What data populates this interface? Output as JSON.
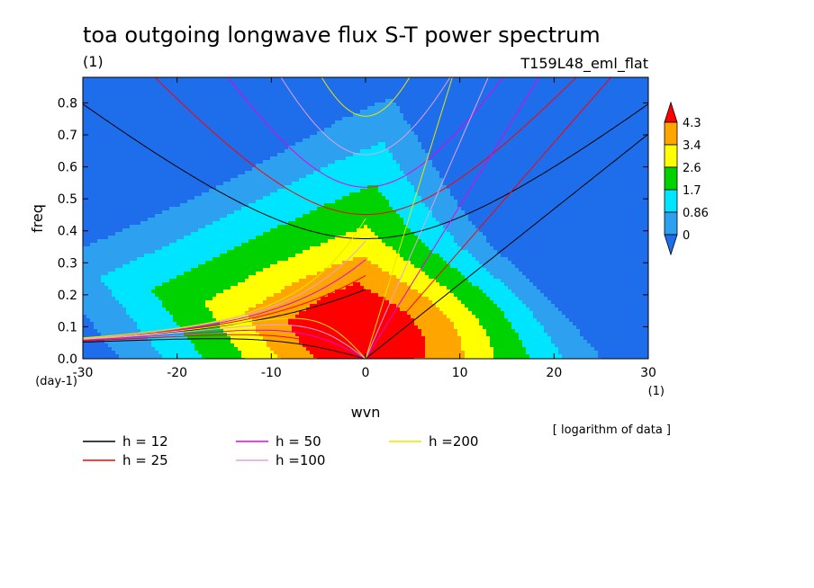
{
  "chart_data": {
    "type": "heatmap",
    "title": "toa outgoing longwave flux S-T power spectrum",
    "subtitle_left": "(1)",
    "subtitle_right": "T159L48_eml_flat",
    "xlabel": "wvn",
    "ylabel": "freq",
    "x_unit": "(1)",
    "y_unit": "(day-1)",
    "note": "[ logarithm of data ]",
    "xlim": [
      -30,
      30
    ],
    "ylim": [
      0,
      0.88
    ],
    "x_ticks": [
      "-30",
      "-20",
      "-10",
      "0",
      "10",
      "20",
      "30"
    ],
    "y_ticks": [
      "0.0",
      "0.1",
      "0.2",
      "0.3",
      "0.4",
      "0.5",
      "0.6",
      "0.7",
      "0.8"
    ],
    "contour_levels": [
      0,
      0.86,
      1.7,
      2.6,
      3.4,
      4.3
    ],
    "colorbar_labels": [
      "0",
      "0.86",
      "1.7",
      "2.6",
      "3.4",
      "4.3"
    ],
    "colors": [
      "#1E6EEB",
      "#2EA0F0",
      "#00E5FF",
      "#00D200",
      "#FFFF00",
      "#FFA500",
      "#FF0000"
    ],
    "field_model": {
      "peak_x": -2,
      "peak_y": 0.07,
      "peak_value": 4.75,
      "decay_along": 0.23,
      "decay_across": 0.075,
      "tilt_dx": -0.9,
      "tilt_dy": 0.19,
      "east_lobe": {
        "x": 5,
        "y": 0.11,
        "amp": 1.2,
        "sx": 10,
        "sy": 0.13
      },
      "bg_lobes": [
        {
          "x": -30,
          "y": 0.85,
          "amp": -1.5,
          "sx": 11,
          "sy": 0.2
        },
        {
          "x": 22,
          "y": 0.6,
          "amp": -1.2,
          "sx": 10,
          "sy": 0.35
        },
        {
          "x": 32,
          "y": 0.82,
          "amp": -2.0,
          "sx": 7,
          "sy": 0.18
        }
      ]
    },
    "dispersion_curves": [
      {
        "name": "h = 12",
        "h": 12,
        "color": "#000000"
      },
      {
        "name": "h = 25",
        "h": 25,
        "color": "#FF0000"
      },
      {
        "name": "h = 50",
        "h": 50,
        "color": "#E600E6"
      },
      {
        "name": "h =100",
        "h": 100,
        "color": "#E6A0E6"
      },
      {
        "name": "h =200",
        "h": 200,
        "color": "#E6E600"
      }
    ]
  }
}
